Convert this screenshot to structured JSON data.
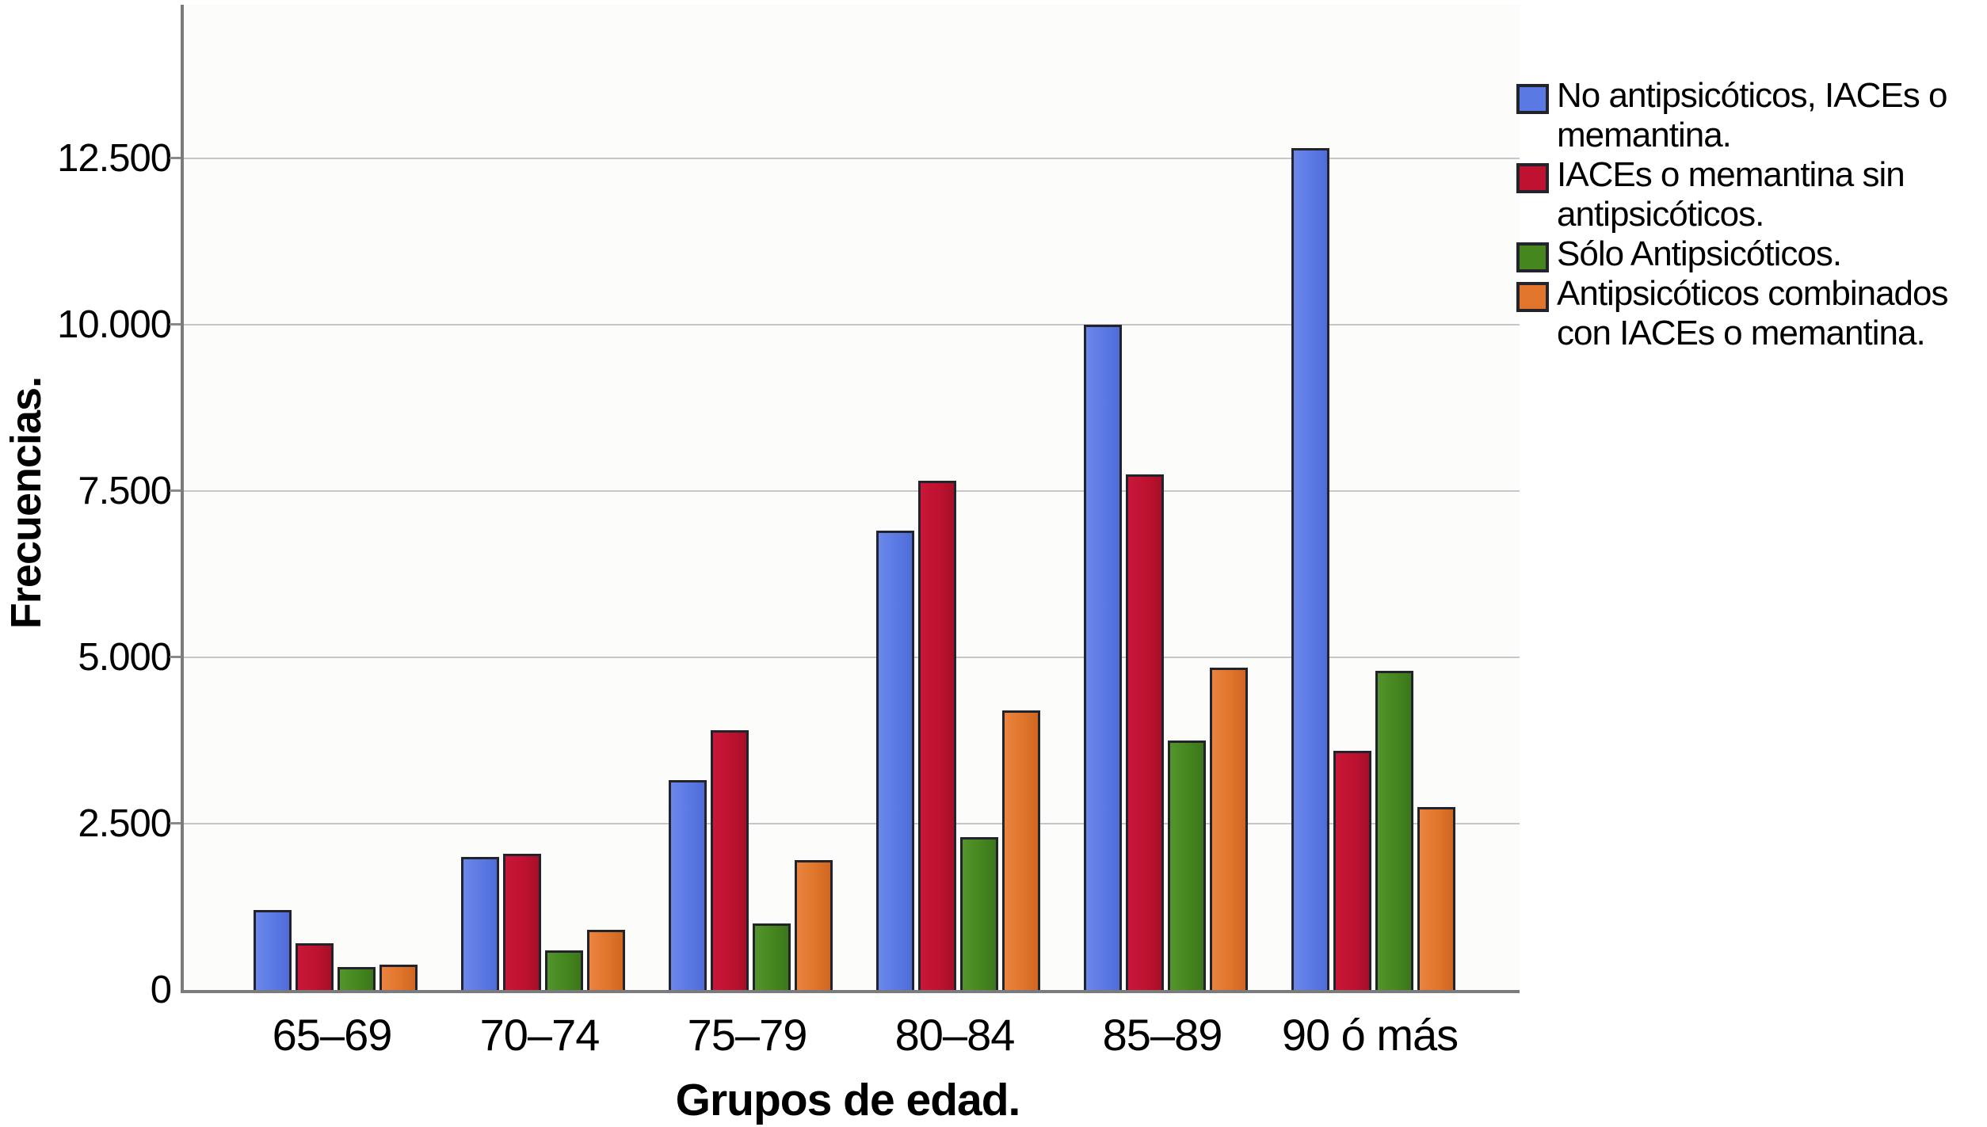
{
  "chart_data": {
    "type": "bar",
    "title": "",
    "xlabel": "Grupos de edad.",
    "ylabel": "Frecuencias.",
    "categories": [
      "65–69",
      "70–74",
      "75–79",
      "80–84",
      "85–89",
      "90 ó más"
    ],
    "series": [
      {
        "name": "No antipsicóticos, IACEs o memantina.",
        "legend_lines": [
          "No antipsicóticos, IACEs o",
          "memantina."
        ],
        "color": "#5b79e3",
        "color_light": "#6b87ea",
        "color_dark": "#4f6cd8",
        "values": [
          1200,
          2000,
          3150,
          6900,
          10000,
          12650
        ]
      },
      {
        "name": "IACEs o memantina sin antipsicóticos.",
        "legend_lines": [
          "IACEs o memantina sin",
          "antipsicóticos."
        ],
        "color": "#be1230",
        "color_light": "#c8173a",
        "color_dark": "#a50f29",
        "values": [
          700,
          2050,
          3900,
          7650,
          7750,
          3600
        ]
      },
      {
        "name": "Sólo Antipsicóticos.",
        "legend_lines": [
          "Sólo Antipsicóticos."
        ],
        "color": "#45861f",
        "color_light": "#55942c",
        "color_dark": "#3c771b",
        "values": [
          350,
          600,
          1000,
          2300,
          3750,
          4800
        ]
      },
      {
        "name": "Antipsicóticos combinados con IACEs o memantina.",
        "legend_lines": [
          "Antipsicóticos combinados",
          "con IACEs o memantina."
        ],
        "color": "#e0752b",
        "color_light": "#ea8440",
        "color_dark": "#cf6722",
        "values": [
          380,
          900,
          1950,
          4200,
          4850,
          2750
        ]
      }
    ],
    "yticks": [
      {
        "label": "0",
        "value": 0
      },
      {
        "label": "2.500",
        "value": 2500
      },
      {
        "label": "5.000",
        "value": 5000
      },
      {
        "label": "7.500",
        "value": 7500
      },
      {
        "label": "10.000",
        "value": 10000
      },
      {
        "label": "12.500",
        "value": 12500
      }
    ],
    "ylim": [
      0,
      14800
    ],
    "grid": "horizontal",
    "legend_position": "top-right"
  },
  "colors": {
    "axis": "#7b7b7e",
    "grid": "#c7c7cb",
    "bar_border": "#23232b",
    "text": "#000000",
    "background": "#ffffff",
    "plot_background": "#fcfcfb"
  }
}
